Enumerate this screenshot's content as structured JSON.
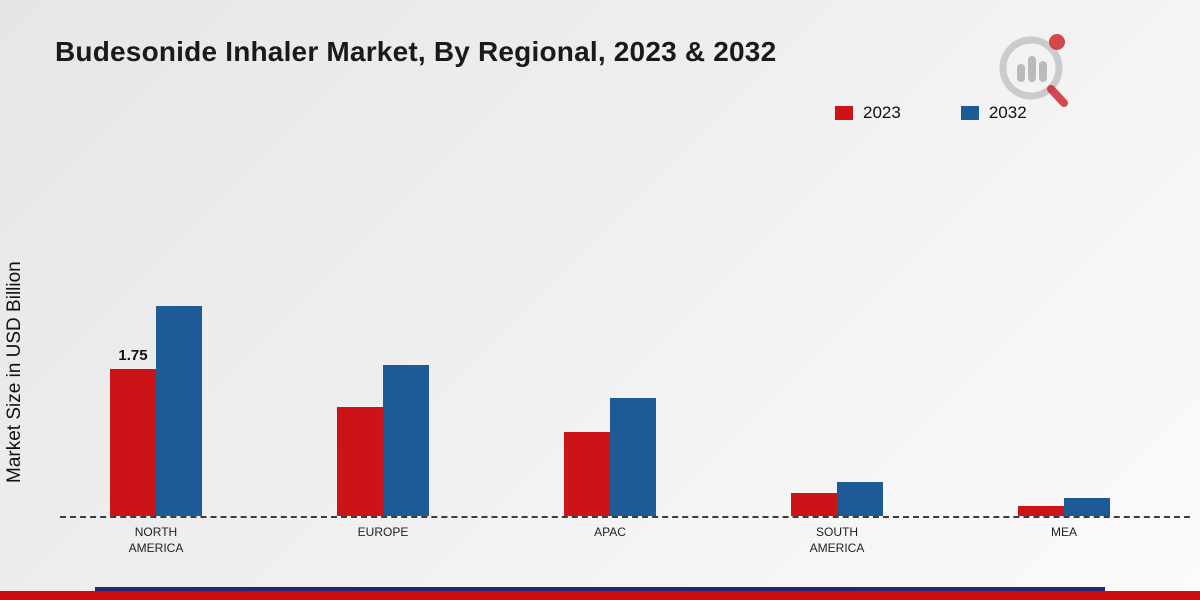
{
  "page": {
    "title": "Budesonide Inhaler Market, By Regional, 2023 & 2032"
  },
  "chart_data": {
    "type": "bar",
    "title": "Budesonide Inhaler Market, By Regional, 2023 & 2032",
    "xlabel": "",
    "ylabel": "Market Size in USD Billion",
    "categories": [
      "NORTH AMERICA",
      "EUROPE",
      "APAC",
      "SOUTH AMERICA",
      "MEA"
    ],
    "series": [
      {
        "name": "2023",
        "color": "#cc1418",
        "values": [
          1.75,
          1.3,
          1.0,
          0.27,
          0.12
        ]
      },
      {
        "name": "2032",
        "color": "#1d5b97",
        "values": [
          2.5,
          1.8,
          1.4,
          0.4,
          0.21
        ]
      }
    ],
    "data_labels": [
      {
        "category_index": 0,
        "series_index": 0,
        "text": "1.75"
      }
    ],
    "ylim": [
      0,
      2.75
    ],
    "baseline_style": "dashed",
    "grid": false,
    "legend_position": "top-right"
  },
  "footer": {
    "red": "#c90d0e",
    "navy": "#202a70"
  },
  "logo": {
    "name": "market-research-chart-logo"
  }
}
